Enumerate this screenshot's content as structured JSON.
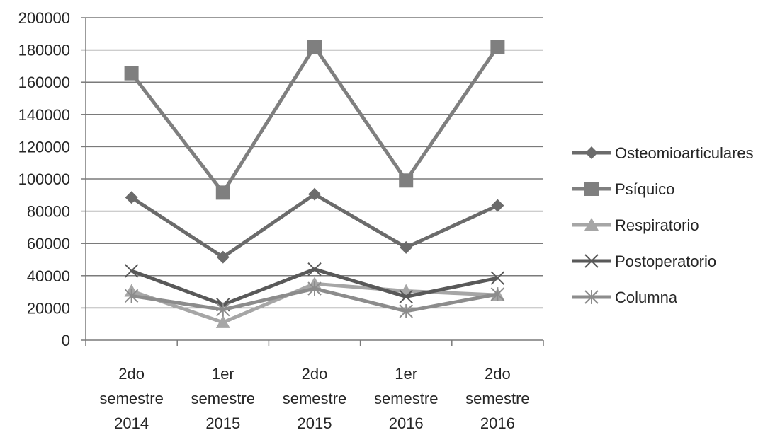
{
  "chart_data": {
    "type": "line",
    "title": "",
    "xlabel": "",
    "ylabel": "",
    "categories": [
      [
        "2do",
        "semestre",
        "2014"
      ],
      [
        "1er",
        "semestre",
        "2015"
      ],
      [
        "2do",
        "semestre",
        "2015"
      ],
      [
        "1er",
        "semestre",
        "2016"
      ],
      [
        "2do",
        "semestre",
        "2016"
      ]
    ],
    "ylim": [
      0,
      200000
    ],
    "yticks": [
      "0",
      "20000",
      "40000",
      "60000",
      "80000",
      "100000",
      "120000",
      "140000",
      "160000",
      "180000",
      "200000"
    ],
    "grid": true,
    "legend_position": "right",
    "series": [
      {
        "name": "Osteomioarticulares",
        "marker": "diamond",
        "color": "#6b6b6b",
        "values": [
          88500,
          51500,
          90500,
          57500,
          83500
        ]
      },
      {
        "name": "Psíquico",
        "marker": "square",
        "color": "#7f7f7f",
        "values": [
          165500,
          91500,
          182000,
          99000,
          182000
        ]
      },
      {
        "name": "Respiratorio",
        "marker": "triangle",
        "color": "#a6a6a6",
        "values": [
          30500,
          11000,
          35000,
          30500,
          28000
        ]
      },
      {
        "name": "Postoperatorio",
        "marker": "x",
        "color": "#595959",
        "values": [
          43000,
          22000,
          44000,
          27000,
          38500
        ]
      },
      {
        "name": "Columna",
        "marker": "asterisk",
        "color": "#8c8c8c",
        "values": [
          27500,
          19000,
          32000,
          18000,
          28500
        ]
      }
    ]
  }
}
